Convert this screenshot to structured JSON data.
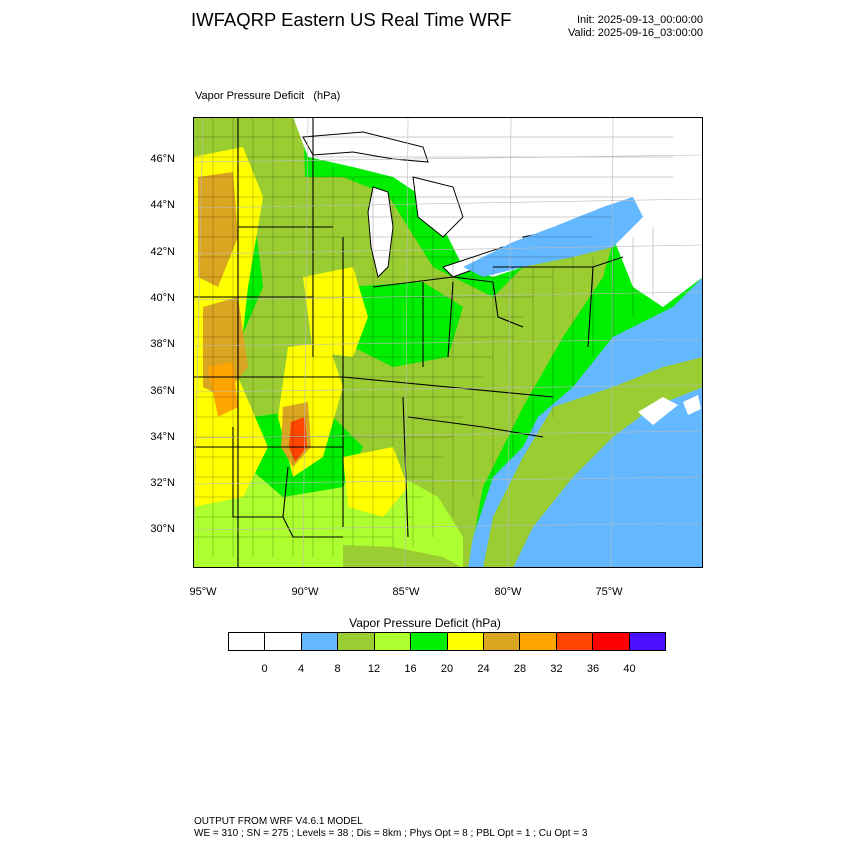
{
  "header": {
    "title": "IWFAQRP Eastern US Real Time WRF",
    "init": "Init: 2025-09-13_00:00:00",
    "valid": "Valid: 2025-09-16_03:00:00"
  },
  "map": {
    "field_title": "Vapor Pressure Deficit   (hPa)",
    "lat_labels": [
      "46°N",
      "44°N",
      "42°N",
      "40°N",
      "38°N",
      "36°N",
      "34°N",
      "32°N",
      "30°N"
    ],
    "lon_labels": [
      "95°W",
      "90°W",
      "85°W",
      "80°W",
      "75°W"
    ]
  },
  "colorbar": {
    "title": "Vapor Pressure Deficit  (hPa)",
    "levels": [
      "0",
      "4",
      "8",
      "12",
      "16",
      "20",
      "24",
      "28",
      "32",
      "36",
      "40"
    ],
    "colors": [
      "#ffffff",
      "#ffffff",
      "#63b8ff",
      "#9acd32",
      "#adff2f",
      "#00ee00",
      "#ffff00",
      "#daa520",
      "#ffa500",
      "#ff4500",
      "#ff0000",
      "#4b0fff"
    ]
  },
  "footer": {
    "line1": "OUTPUT FROM WRF V4.6.1 MODEL",
    "line2": "WE = 310 ; SN = 275 ; Levels = 38 ; Dis = 8km ; Phys Opt = 8 ; PBL Opt = 1 ; Cu Opt = 3"
  }
}
